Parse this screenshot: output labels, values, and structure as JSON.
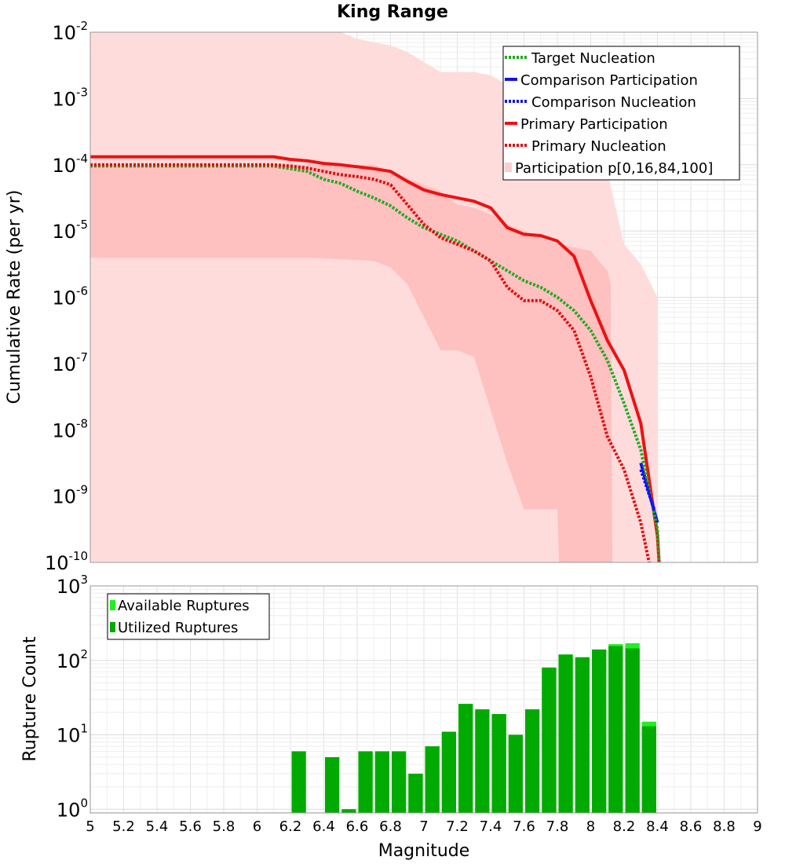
{
  "chart_data": [
    {
      "type": "line",
      "title": "King Range",
      "xlabel": "",
      "ylabel": "Cumulative Rate (per yr)",
      "xlim": [
        5,
        9
      ],
      "ylim_log10": [
        -10,
        -2
      ],
      "ytick_exponents": [
        "-2",
        "-3",
        "-4",
        "-5",
        "-6",
        "-7",
        "-8",
        "-9",
        "-10"
      ],
      "legend": [
        {
          "label": "Target Nucleation",
          "color": "#22aa22",
          "style": "dotted"
        },
        {
          "label": "Comparison Participation",
          "color": "#1111ee",
          "style": "solid"
        },
        {
          "label": "Comparison Nucleation",
          "color": "#1111ee",
          "style": "dotted"
        },
        {
          "label": "Primary Participation",
          "color": "#ee1111",
          "style": "solid"
        },
        {
          "label": "Primary Nucleation",
          "color": "#dd1111",
          "style": "dotted"
        },
        {
          "label": "Participation p[0,16,84,100]",
          "color": "#ffcccc",
          "style": "band"
        }
      ],
      "band_outer": {
        "x": [
          5.0,
          6.35,
          6.5,
          6.6,
          6.8,
          6.9,
          7.0,
          7.1,
          7.2,
          7.3,
          7.4,
          7.5,
          7.6,
          7.7,
          7.8,
          7.9,
          8.0,
          8.1,
          8.2,
          8.3,
          8.4
        ],
        "upper": [
          -2,
          -2,
          -2,
          -2.1,
          -2.2,
          -2.3,
          -2.45,
          -2.6,
          -2.6,
          -2.6,
          -2.65,
          -2.8,
          -2.9,
          -3.0,
          -3.1,
          -3.3,
          -3.8,
          -4.1,
          -5.2,
          -5.5,
          -6
        ],
        "lower": [
          -10,
          -10,
          -10,
          -10,
          -10,
          -10,
          -10,
          -10,
          -10,
          -10,
          -10,
          -10,
          -10,
          -10,
          -10,
          -10,
          -10,
          -10,
          -10,
          -10,
          -10
        ]
      },
      "band_inner": {
        "x": [
          5.0,
          6.3,
          6.7,
          6.8,
          6.9,
          7.0,
          7.1,
          7.2,
          7.3,
          7.4,
          7.5,
          7.6,
          7.7,
          7.8,
          7.81,
          8.0,
          8.1,
          8.12,
          8.13
        ],
        "upper": [
          -4.0,
          -4.0,
          -4.0,
          -4.1,
          -4.2,
          -4.3,
          -4.4,
          -4.6,
          -4.65,
          -4.75,
          -4.9,
          -5.0,
          -5.1,
          -5.2,
          -5.2,
          -5.3,
          -5.6,
          -5.8,
          -10
        ],
        "lower": [
          -5.4,
          -5.4,
          -5.45,
          -5.55,
          -5.8,
          -6.3,
          -6.8,
          -6.8,
          -6.9,
          -7.7,
          -8.5,
          -9.2,
          -9.2,
          -9.2,
          -10,
          -10,
          -10,
          -10,
          -10
        ]
      },
      "series": [
        {
          "name": "Primary Participation",
          "color": "#ee1111",
          "style": "solid",
          "x": [
            5.0,
            6.1,
            6.2,
            6.3,
            6.4,
            6.5,
            6.6,
            6.7,
            6.8,
            6.9,
            7.0,
            7.1,
            7.2,
            7.3,
            7.4,
            7.5,
            7.6,
            7.7,
            7.8,
            7.9,
            8.0,
            8.1,
            8.2,
            8.3,
            8.4,
            8.41
          ],
          "y_log10": [
            -3.88,
            -3.88,
            -3.92,
            -3.94,
            -3.98,
            -4.0,
            -4.03,
            -4.06,
            -4.1,
            -4.25,
            -4.38,
            -4.45,
            -4.5,
            -4.55,
            -4.65,
            -4.95,
            -5.05,
            -5.07,
            -5.15,
            -5.38,
            -6.05,
            -6.65,
            -7.1,
            -7.9,
            -9.6,
            -10
          ]
        },
        {
          "name": "Comparison Participation",
          "color": "#1111ee",
          "style": "solid",
          "x": [
            8.3,
            8.4
          ],
          "y_log10": [
            -8.5,
            -9.4
          ]
        },
        {
          "name": "Target Nucleation",
          "color": "#22aa22",
          "style": "dotted",
          "x": [
            5.0,
            6.1,
            6.2,
            6.3,
            6.4,
            6.5,
            6.6,
            6.7,
            6.8,
            6.9,
            7.0,
            7.1,
            7.2,
            7.3,
            7.4,
            7.5,
            7.6,
            7.7,
            7.8,
            7.9,
            8.0,
            8.1,
            8.2,
            8.3,
            8.4,
            8.41
          ],
          "y_log10": [
            -4.02,
            -4.02,
            -4.06,
            -4.1,
            -4.22,
            -4.28,
            -4.4,
            -4.5,
            -4.62,
            -4.8,
            -4.95,
            -5.05,
            -5.15,
            -5.3,
            -5.45,
            -5.6,
            -5.75,
            -5.85,
            -6.0,
            -6.2,
            -6.5,
            -6.95,
            -7.6,
            -8.3,
            -9.5,
            -10
          ]
        },
        {
          "name": "Comparison Nucleation",
          "color": "#1111ee",
          "style": "dotted",
          "x": [
            8.3,
            8.38
          ],
          "y_log10": [
            -8.6,
            -9.2
          ]
        },
        {
          "name": "Primary Nucleation",
          "color": "#dd1111",
          "style": "dotted",
          "x": [
            5.0,
            6.1,
            6.2,
            6.3,
            6.4,
            6.5,
            6.6,
            6.7,
            6.8,
            6.9,
            7.0,
            7.1,
            7.2,
            7.3,
            7.4,
            7.5,
            7.6,
            7.7,
            7.8,
            7.9,
            8.0,
            8.1,
            8.2,
            8.3,
            8.35
          ],
          "y_log10": [
            -4.0,
            -4.0,
            -4.02,
            -4.05,
            -4.1,
            -4.15,
            -4.18,
            -4.22,
            -4.3,
            -4.6,
            -4.9,
            -5.1,
            -5.2,
            -5.3,
            -5.45,
            -5.85,
            -6.05,
            -6.05,
            -6.2,
            -6.5,
            -7.2,
            -8.1,
            -8.6,
            -9.4,
            -10
          ]
        }
      ],
      "legend_placement": "top-right"
    },
    {
      "type": "bar",
      "title": "",
      "xlabel": "Magnitude",
      "ylabel": "Rupture Count",
      "xlim": [
        5,
        9
      ],
      "ylim_log10": [
        -0.05,
        3
      ],
      "ytick_exponents": [
        "3",
        "2",
        "1",
        "0"
      ],
      "xtick_labels": [
        "5",
        "5.2",
        "5.4",
        "5.6",
        "5.8",
        "6",
        "6.2",
        "6.4",
        "6.6",
        "6.8",
        "7",
        "7.2",
        "7.4",
        "7.6",
        "7.8",
        "8",
        "8.2",
        "8.4",
        "8.6",
        "8.8",
        "9"
      ],
      "bin_width": 0.1,
      "legend": [
        {
          "label": "Available Ruptures",
          "color": "#22ee22"
        },
        {
          "label": "Utilized Ruptures",
          "color": "#00aa00"
        }
      ],
      "legend_placement": "top-left",
      "series": [
        {
          "name": "Available Ruptures",
          "color": "#22ee22",
          "x": [
            6.25,
            6.45,
            6.55,
            6.65,
            6.75,
            6.85,
            6.95,
            7.05,
            7.15,
            7.25,
            7.35,
            7.45,
            7.55,
            7.65,
            7.75,
            7.85,
            7.95,
            8.05,
            8.15,
            8.25,
            8.35
          ],
          "values": [
            6,
            5,
            1,
            6,
            6,
            6,
            3,
            7,
            11,
            26,
            22,
            19,
            10,
            22,
            80,
            120,
            110,
            140,
            165,
            170,
            15
          ]
        },
        {
          "name": "Utilized Ruptures",
          "color": "#00aa00",
          "x": [
            6.25,
            6.45,
            6.55,
            6.65,
            6.75,
            6.85,
            6.95,
            7.05,
            7.15,
            7.25,
            7.35,
            7.45,
            7.55,
            7.65,
            7.75,
            7.85,
            7.95,
            8.05,
            8.15,
            8.25,
            8.35
          ],
          "values": [
            6,
            5,
            1,
            6,
            6,
            6,
            3,
            7,
            11,
            26,
            22,
            19,
            10,
            22,
            80,
            120,
            110,
            140,
            155,
            145,
            13
          ]
        }
      ]
    }
  ]
}
